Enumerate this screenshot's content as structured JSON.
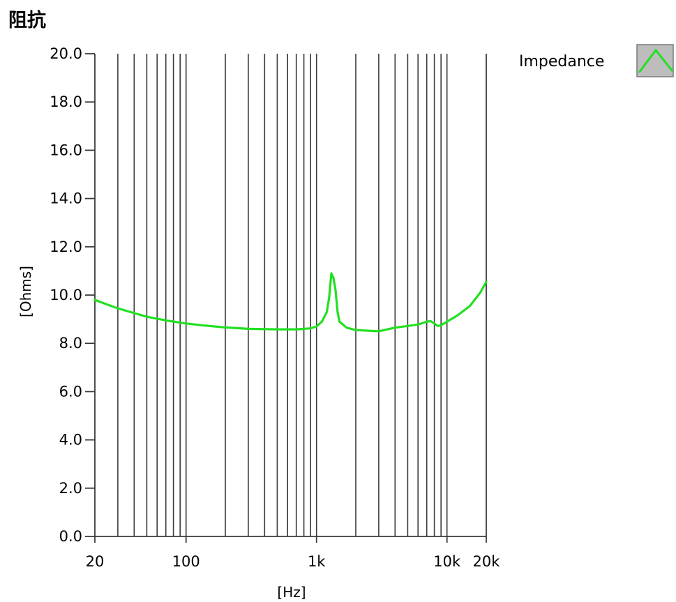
{
  "chart_data": {
    "type": "line",
    "title": "阻抗",
    "xlabel": "[Hz]",
    "ylabel": "[Ohms]",
    "x_scale": "log",
    "xlim": [
      20,
      20000
    ],
    "ylim": [
      0,
      20
    ],
    "x_ticks": [
      {
        "value": 20,
        "label": "20"
      },
      {
        "value": 100,
        "label": "100"
      },
      {
        "value": 1000,
        "label": "1k"
      },
      {
        "value": 10000,
        "label": "10k"
      },
      {
        "value": 20000,
        "label": "20k"
      }
    ],
    "y_ticks": [
      {
        "value": 0,
        "label": "0.0"
      },
      {
        "value": 2,
        "label": "2.0"
      },
      {
        "value": 4,
        "label": "4.0"
      },
      {
        "value": 6,
        "label": "6.0"
      },
      {
        "value": 8,
        "label": "8.0"
      },
      {
        "value": 10,
        "label": "10.0"
      },
      {
        "value": 12,
        "label": "12.0"
      },
      {
        "value": 14,
        "label": "14.0"
      },
      {
        "value": 16,
        "label": "16.0"
      },
      {
        "value": 18,
        "label": "18.0"
      },
      {
        "value": 20,
        "label": "20.0"
      }
    ],
    "vertical_grid_values": [
      30,
      40,
      50,
      60,
      70,
      80,
      90,
      100,
      200,
      300,
      400,
      500,
      600,
      700,
      800,
      900,
      1000,
      2000,
      3000,
      4000,
      5000,
      6000,
      7000,
      8000,
      9000,
      10000
    ],
    "grid": "vertical",
    "legend_position": "top-right",
    "series": [
      {
        "name": "Impedance",
        "color": "#22e022",
        "x": [
          20,
          25,
          30,
          40,
          50,
          70,
          100,
          150,
          200,
          300,
          500,
          700,
          900,
          1000,
          1100,
          1200,
          1250,
          1300,
          1350,
          1400,
          1450,
          1500,
          1700,
          2000,
          3000,
          4000,
          5000,
          6000,
          7000,
          7500,
          8000,
          8500,
          9000,
          10000,
          12000,
          15000,
          18000,
          20000
        ],
        "values": [
          9.8,
          9.6,
          9.45,
          9.25,
          9.1,
          8.95,
          8.82,
          8.72,
          8.66,
          8.6,
          8.58,
          8.58,
          8.62,
          8.7,
          8.9,
          9.3,
          9.9,
          10.9,
          10.7,
          10.2,
          9.3,
          8.9,
          8.65,
          8.55,
          8.5,
          8.65,
          8.72,
          8.78,
          8.9,
          8.92,
          8.82,
          8.72,
          8.75,
          8.9,
          9.15,
          9.55,
          10.1,
          10.55
        ]
      }
    ]
  }
}
